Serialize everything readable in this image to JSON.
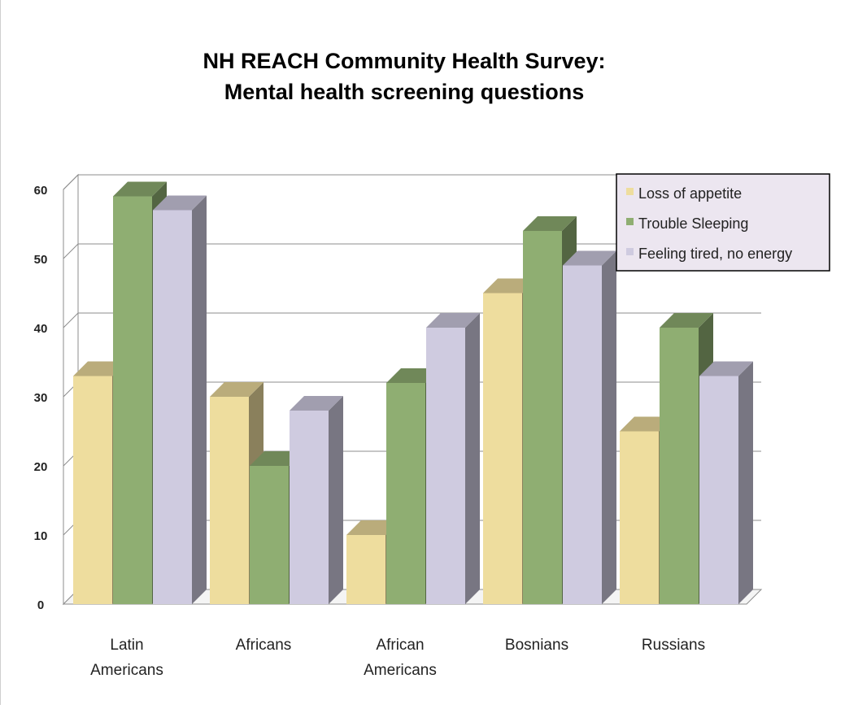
{
  "chart_data": {
    "type": "bar",
    "title": "NH REACH Community Health Survey:",
    "subtitle": "Mental health screening questions",
    "categories": [
      "Latin Americans",
      "Africans",
      "African Americans",
      "Bosnians",
      "Russians"
    ],
    "category_lines": [
      [
        "Latin",
        "Americans"
      ],
      [
        "Africans"
      ],
      [
        "African",
        "Americans"
      ],
      [
        "Bosnians"
      ],
      [
        "Russians"
      ]
    ],
    "series": [
      {
        "name": "Loss of appetite",
        "values": [
          33,
          30,
          10,
          45,
          25
        ],
        "color": "#eedd9e"
      },
      {
        "name": "Trouble Sleeping",
        "values": [
          59,
          20,
          32,
          54,
          40
        ],
        "color": "#8fae72"
      },
      {
        "name": "Feeling tired, no energy",
        "values": [
          57,
          28,
          40,
          49,
          33
        ],
        "color": "#cfcbe0"
      }
    ],
    "y_ticks": [
      "0",
      "10",
      "20",
      "30",
      "40",
      "50",
      "60"
    ],
    "ylim": [
      0,
      60
    ],
    "grid": true,
    "legend_position": "top-right",
    "legend_background": "#ece6f0",
    "legend_border": "#000000"
  }
}
